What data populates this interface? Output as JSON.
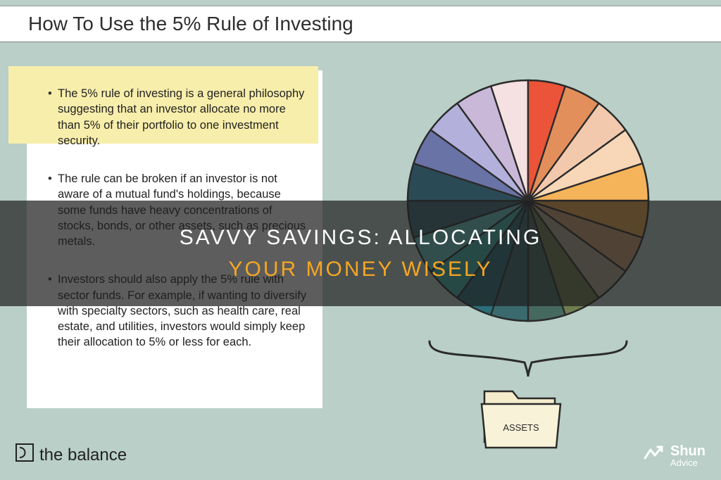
{
  "title": "How To Use the 5% Rule of Investing",
  "card": {
    "bullets": [
      "The 5% rule of investing is a general philosophy suggesting that an investor allocate no more than 5% of their portfolio to one investment security.",
      "The rule can be broken if an investor is not aware of a mutual fund's holdings, because some funds have heavy concentrations of stocks, bonds, or other assets, such as precious metals.",
      "Investors should also apply the 5% rule with sector funds. For example, if wanting to diversify with specialty sectors, such as health care, real estate, and utilities, investors would simply keep their allocation to 5% or less for each."
    ],
    "highlight_color": "#f8eeab",
    "card_bg": "#ffffff",
    "text_color": "#222222",
    "fontsize": 16.5
  },
  "pie": {
    "type": "pie",
    "slice_count": 20,
    "slice_value_pct": 5,
    "stroke": "#2b2b2b",
    "stroke_width": 2.5,
    "radius": 180,
    "colors": [
      "#f5e1e2",
      "#eb5438",
      "#e38f5b",
      "#f3c9ae",
      "#f7d7b8",
      "#f5b35a",
      "#f0a84a",
      "#cfa070",
      "#b0a98c",
      "#6f7d4e",
      "#46695f",
      "#3a6a6e",
      "#2a6e78",
      "#3fb7ad",
      "#62cac0",
      "#3a6a78",
      "#2a4a56",
      "#6a73a6",
      "#b3b0db",
      "#c9b8d8"
    ]
  },
  "folder_label": "ASSETS",
  "overlay": {
    "line1": "SAVVY SAVINGS: ALLOCATING",
    "line2": "YOUR MONEY WISELY",
    "bg": "rgba(30,30,30,0.72)",
    "line1_color": "#ffffff",
    "line2_color": "#f5a623",
    "fontsize": 30
  },
  "footer": {
    "left_brand": "the balance",
    "right_brand_top": "Shun",
    "right_brand_bottom": "Advice"
  },
  "page_bg": "#b9cfc8"
}
